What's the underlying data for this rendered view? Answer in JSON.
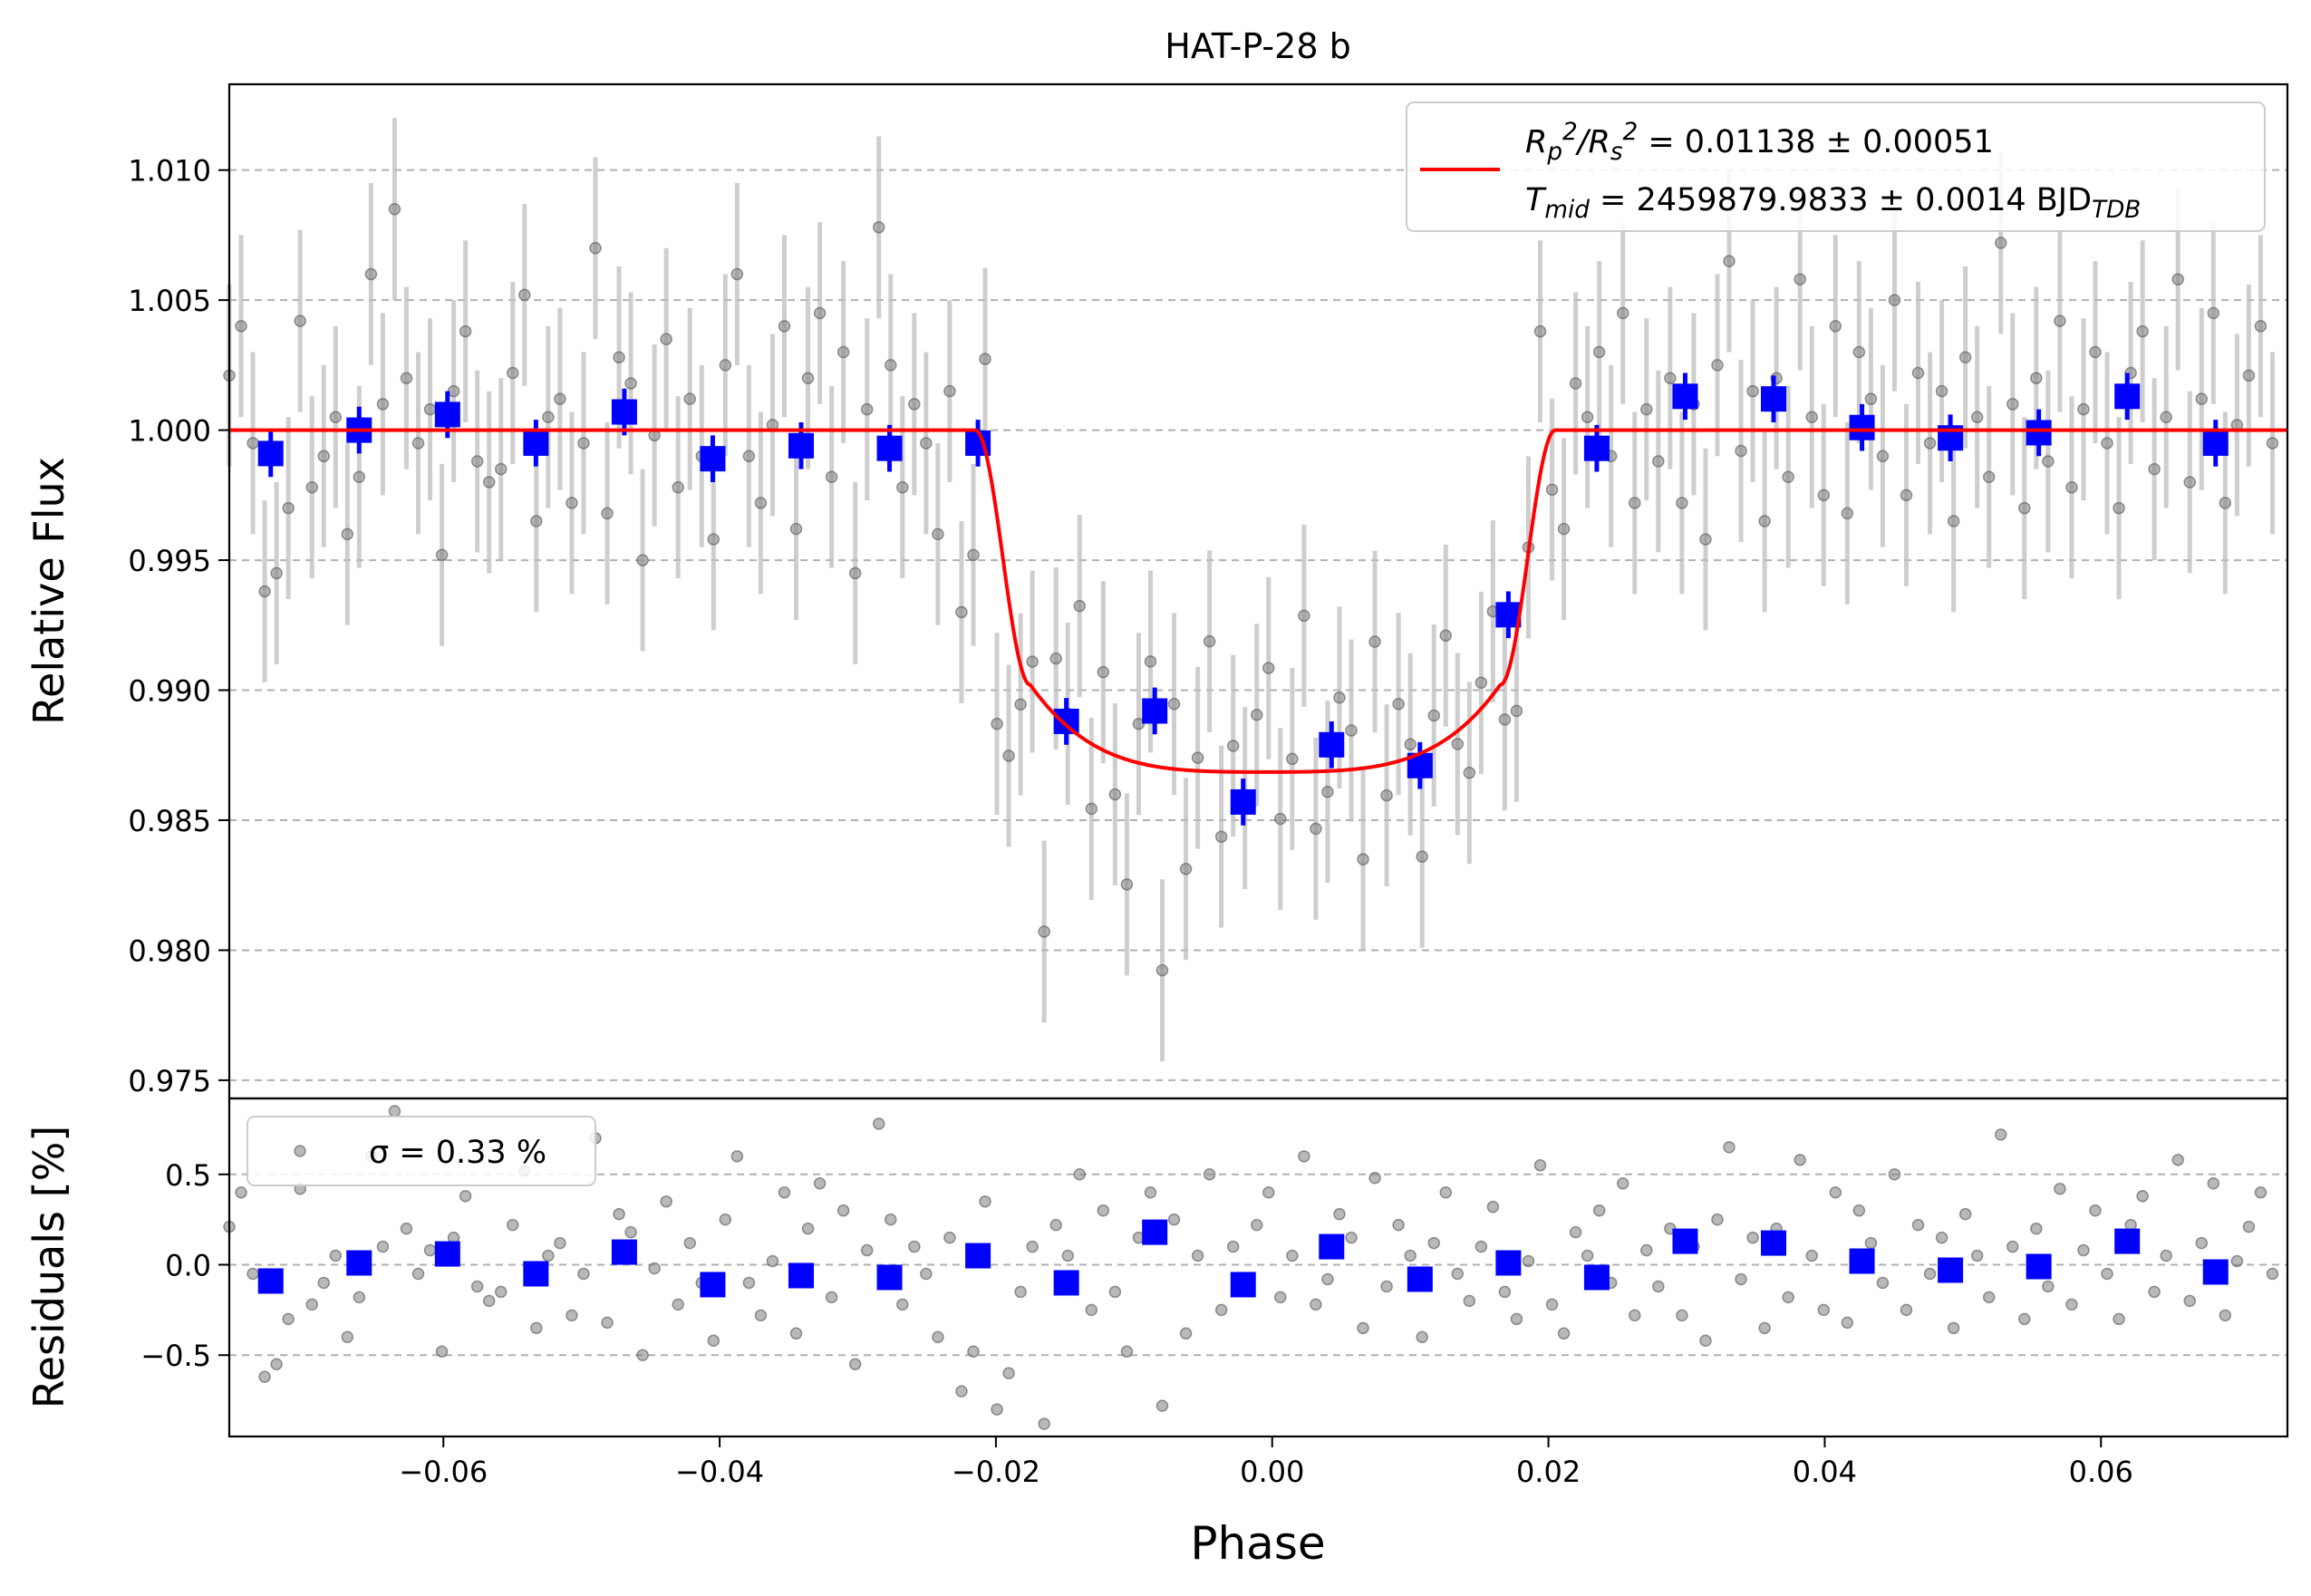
{
  "chart_data": [
    {
      "panel": "main",
      "type": "scatter",
      "title": "HAT-P-28 b",
      "xlabel": "",
      "ylabel": "Relative Flux",
      "xlim": [
        -0.0755,
        0.0735
      ],
      "ylim": [
        0.9743,
        1.0133
      ],
      "yticks": [
        0.975,
        0.98,
        0.985,
        0.99,
        0.995,
        1.0,
        1.005,
        1.01
      ],
      "ytick_labels": [
        "0.975",
        "0.980",
        "0.985",
        "0.990",
        "0.995",
        "1.000",
        "1.005",
        "1.010"
      ],
      "grid": "horizontal dashed",
      "legend": {
        "placement": "top-right",
        "line1": {
          "prefix_html": "R<tspan baseline-shift='-30%' font-size='75%' font-style='italic'>p</tspan><tspan baseline-shift='55%' font-size='75%'>2</tspan>/R<tspan baseline-shift='-30%' font-size='75%' font-style='italic'>s</tspan><tspan baseline-shift='55%' font-size='75%'>2</tspan>",
          "value": " = 0.01138 ± 0.00051"
        },
        "line2": {
          "value": " = 2459879.9833 ± 0.0014 BJD"
        }
      },
      "model": {
        "name": "transit model",
        "color": "#ff0000",
        "baseline": 1.0,
        "depth_min": 0.98685,
        "t1": -0.0215,
        "t2": -0.017,
        "t3": 0.017,
        "t4": 0.0205,
        "ingress_level": 0.9902
      },
      "binned": {
        "color": "#0000ff",
        "x": [
          -0.0725,
          -0.0661,
          -0.0597,
          -0.0533,
          -0.0469,
          -0.0405,
          -0.0341,
          -0.0277,
          -0.0213,
          -0.0149,
          -0.0085,
          -0.0021,
          0.0043,
          0.0107,
          0.0171,
          0.0235,
          0.0299,
          0.0363,
          0.0427,
          0.0491,
          0.0555,
          0.0619,
          0.0683
        ],
        "y": [
          0.9991,
          1.0,
          1.0006,
          0.9995,
          1.0007,
          0.9989,
          0.9994,
          0.9993,
          0.9995,
          0.9888,
          0.9892,
          0.9857,
          0.9879,
          0.9871,
          0.9929,
          0.9993,
          1.0013,
          1.0012,
          1.0001,
          0.9997,
          0.9999,
          1.0013,
          0.9995
        ],
        "yerr": [
          0.0009,
          0.0009,
          0.0009,
          0.0009,
          0.0009,
          0.0009,
          0.0009,
          0.0009,
          0.0009,
          0.0009,
          0.0009,
          0.0009,
          0.0009,
          0.0009,
          0.0009,
          0.0009,
          0.0009,
          0.0009,
          0.0009,
          0.0009,
          0.0009,
          0.0009,
          0.0009
        ]
      },
      "raw": {
        "color": "#808080",
        "x_start": -0.0755,
        "x_step": 0.000855,
        "count": 174,
        "yerr": 0.0035,
        "residuals_percent": [
          0.21,
          0.4,
          -0.05,
          -0.62,
          -0.55,
          -0.3,
          0.42,
          -0.22,
          -0.1,
          0.05,
          -0.4,
          -0.18,
          0.6,
          0.1,
          0.85,
          0.2,
          -0.05,
          0.08,
          -0.48,
          0.15,
          0.38,
          -0.12,
          -0.2,
          -0.15,
          0.22,
          0.52,
          -0.35,
          0.05,
          0.12,
          -0.28,
          -0.05,
          0.7,
          -0.32,
          0.28,
          0.18,
          -0.5,
          -0.02,
          0.35,
          -0.22,
          0.12,
          -0.1,
          -0.42,
          0.25,
          0.6,
          -0.1,
          -0.28,
          0.02,
          0.4,
          -0.38,
          0.2,
          0.45,
          -0.18,
          0.3,
          -0.55,
          0.08,
          0.78,
          0.25,
          -0.22,
          0.1,
          -0.05,
          -0.4,
          0.15,
          -0.7,
          -0.48,
          0.35,
          -0.8,
          -0.6,
          -0.15,
          0.1,
          -0.88,
          0.22,
          0.05,
          0.5,
          -0.25,
          0.3,
          -0.15,
          -0.48,
          0.15,
          0.4,
          -0.78,
          0.25,
          -0.38,
          0.05,
          0.5,
          -0.25,
          0.1,
          -0.1,
          0.22,
          0.4,
          -0.18,
          0.05,
          0.6,
          -0.22,
          -0.08,
          0.28,
          0.15,
          -0.35,
          0.48,
          -0.12,
          0.22,
          0.05,
          -0.4,
          0.12,
          0.4,
          -0.05,
          -0.2,
          0.1,
          0.32,
          -0.15,
          -0.3,
          0.02,
          0.55,
          -0.22,
          -0.38,
          0.18,
          0.05,
          0.3,
          -0.1,
          0.45,
          -0.28,
          0.08,
          -0.12,
          0.2,
          -0.28,
          0.1,
          -0.42,
          0.25,
          0.65,
          -0.08,
          0.15,
          -0.35,
          0.2,
          -0.18,
          0.58,
          0.05,
          -0.25,
          0.4,
          -0.32,
          0.3,
          0.12,
          -0.1,
          0.5,
          -0.25,
          0.22,
          -0.05,
          0.15,
          -0.35,
          0.28,
          0.05,
          -0.18,
          0.72,
          0.1,
          -0.3,
          0.2,
          -0.12,
          0.42,
          -0.22,
          0.08,
          0.3,
          -0.05,
          -0.3,
          0.22,
          0.38,
          -0.15,
          0.05,
          0.58,
          -0.2,
          0.12,
          0.45,
          -0.28,
          0.02
        ]
      }
    },
    {
      "panel": "residuals",
      "type": "scatter",
      "xlabel": "Phase",
      "ylabel": "Residuals [%]",
      "xlim": [
        -0.0755,
        0.0735
      ],
      "ylim": [
        -0.95,
        0.92
      ],
      "xticks": [
        -0.06,
        -0.04,
        -0.02,
        0.0,
        0.02,
        0.04,
        0.06
      ],
      "xtick_labels": [
        "−0.06",
        "−0.04",
        "−0.02",
        "0.00",
        "0.02",
        "0.04",
        "0.06"
      ],
      "yticks": [
        -0.5,
        0.0,
        0.5
      ],
      "ytick_labels": [
        "−0.5",
        "0.0",
        "0.5"
      ],
      "grid": "horizontal dashed",
      "legend": {
        "placement": "top-left",
        "label": "σ = 0.33 %"
      },
      "binned_residuals_percent": [
        -0.09,
        0.01,
        0.06,
        -0.05,
        0.07,
        -0.11,
        -0.06,
        -0.07,
        0.05,
        -0.1,
        0.18,
        -0.11,
        0.1,
        -0.08,
        0.01,
        -0.07,
        0.13,
        0.12,
        0.02,
        -0.03,
        -0.01,
        0.13,
        -0.04
      ]
    }
  ]
}
